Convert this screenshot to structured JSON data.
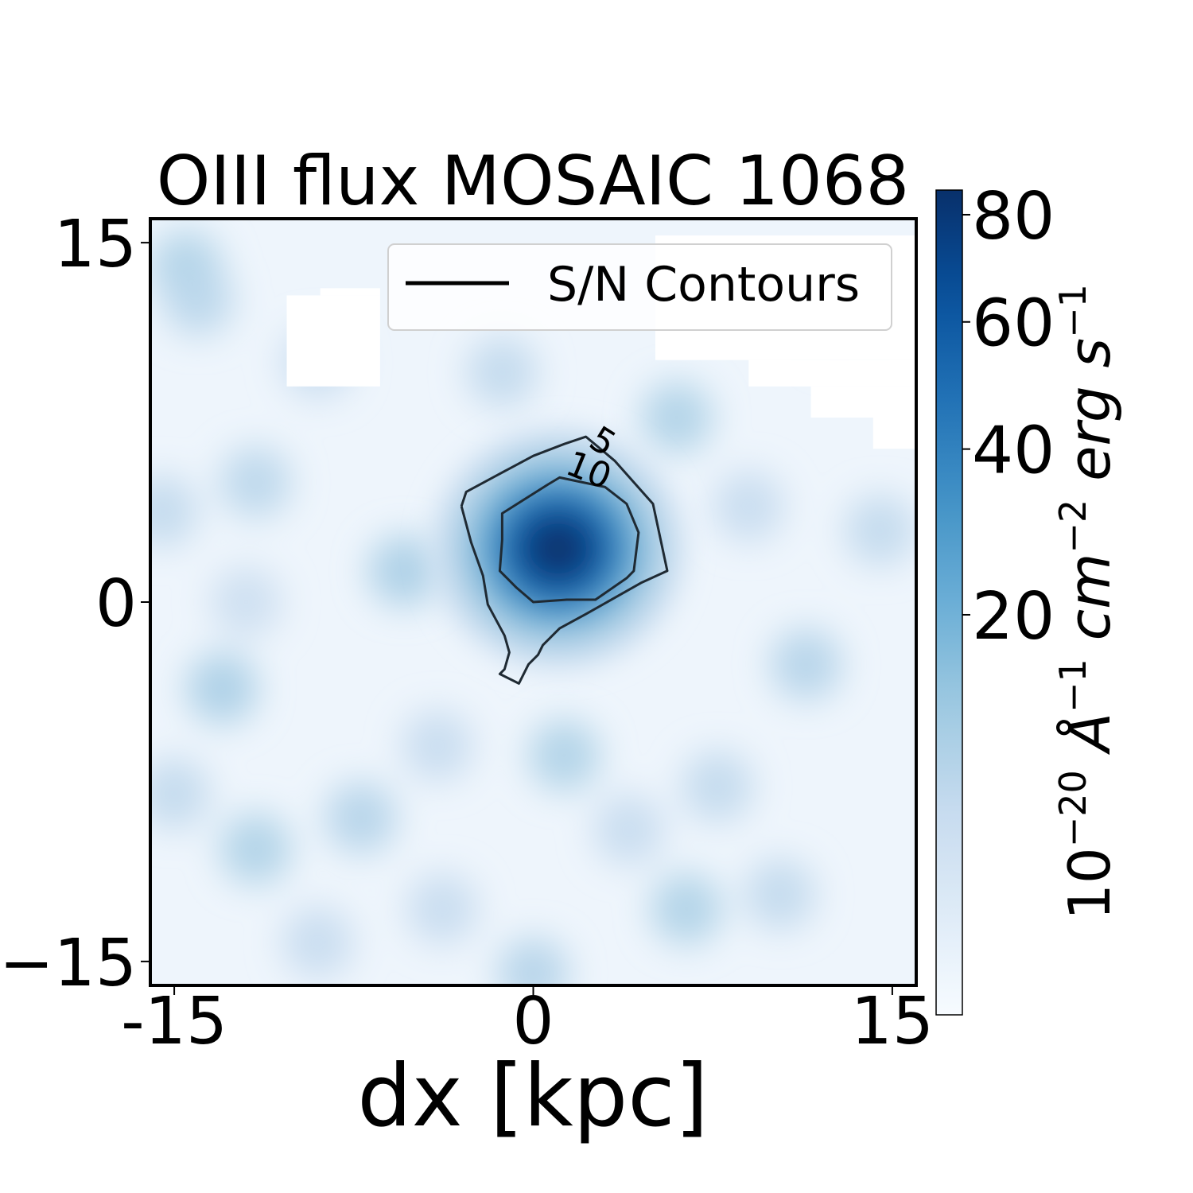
{
  "chart_data": {
    "type": "heatmap",
    "title": "OIII flux MOSAIC 1068",
    "xlabel": "dx [kpc]",
    "ylabel": "",
    "x_ticks": [
      "-15",
      "0",
      "15"
    ],
    "x_tick_values": [
      -15,
      0,
      15
    ],
    "y_ticks": [
      "15",
      "0",
      "−15"
    ],
    "y_tick_values": [
      15,
      0,
      -15
    ],
    "xlim": [
      -16,
      16
    ],
    "ylim": [
      -16,
      16
    ],
    "colormap": "Blues",
    "colorbar": {
      "label_parts": [
        "10",
        "−20",
        " Å",
        "−1",
        " cm",
        "−2",
        " erg s",
        "−1"
      ],
      "ticks": [
        "20",
        "40",
        "60",
        "80"
      ],
      "tick_values": [
        20,
        40,
        60,
        80
      ],
      "range": [
        0,
        85
      ],
      "scale": "sqrt"
    },
    "legend": {
      "label": "S/N Contours",
      "placement": "upper right"
    },
    "peak": {
      "x": 1.3,
      "y": 2.4,
      "value": 85
    },
    "contours": [
      {
        "level": 5,
        "label": "5",
        "points": [
          [
            -3,
            4
          ],
          [
            -2.8,
            4.6
          ],
          [
            -1.5,
            5.3
          ],
          [
            0,
            6.1
          ],
          [
            1.3,
            6.6
          ],
          [
            2.2,
            6.9
          ],
          [
            3.4,
            5.9
          ],
          [
            5,
            4.1
          ],
          [
            5.6,
            1.3
          ],
          [
            4.5,
            0.8
          ],
          [
            2.2,
            -0.5
          ],
          [
            1.1,
            -1.1
          ],
          [
            0.4,
            -1.8
          ],
          [
            0.2,
            -2.2
          ],
          [
            -0.2,
            -2.6
          ],
          [
            -0.6,
            -3.4
          ],
          [
            -1.4,
            -3
          ],
          [
            -1.2,
            -2.8
          ],
          [
            -1,
            -2.1
          ],
          [
            -1.2,
            -1.4
          ],
          [
            -1.9,
            -0.1
          ],
          [
            -2.1,
            1.1
          ],
          [
            -2.6,
            2.5
          ],
          [
            -3,
            4
          ]
        ]
      },
      {
        "level": 10,
        "label": "10",
        "points": [
          [
            0.6,
            4.9
          ],
          [
            1.1,
            5.2
          ],
          [
            3,
            4.8
          ],
          [
            3.9,
            4.1
          ],
          [
            4.4,
            2.9
          ],
          [
            4.2,
            1.3
          ],
          [
            3.9,
            1
          ],
          [
            2.6,
            0.1
          ],
          [
            1.4,
            0.1
          ],
          [
            0,
            0
          ],
          [
            -0.7,
            0.6
          ],
          [
            -1.4,
            1.3
          ],
          [
            -1.3,
            2.6
          ],
          [
            -1.3,
            3.1
          ],
          [
            -1.3,
            3.7
          ],
          [
            0.6,
            4.9
          ]
        ]
      }
    ],
    "blank_regions": [
      {
        "x0": -10.3,
        "x1": -6.4,
        "y0": 9,
        "y1": 12.8
      },
      {
        "x0": -8.9,
        "x1": -6.4,
        "y0": 12.8,
        "y1": 13.1
      },
      {
        "x0": 5.1,
        "x1": 16,
        "y0": 10.1,
        "y1": 15.3
      },
      {
        "x0": 9,
        "x1": 16,
        "y0": 9,
        "y1": 10.1
      },
      {
        "x0": 11.6,
        "x1": 16,
        "y0": 7.7,
        "y1": 9
      },
      {
        "x0": 14.2,
        "x1": 16,
        "y0": 6.4,
        "y1": 7.7
      }
    ],
    "background_blobs": [
      {
        "x": -14.5,
        "y": 14,
        "value": 9
      },
      {
        "x": -14,
        "y": 12.6,
        "value": 7
      },
      {
        "x": -11.6,
        "y": 5,
        "value": 7
      },
      {
        "x": -5.4,
        "y": 1.3,
        "value": 10
      },
      {
        "x": 6,
        "y": 7.7,
        "value": 9
      },
      {
        "x": -1.3,
        "y": 9.6,
        "value": 6
      },
      {
        "x": -13,
        "y": -3.6,
        "value": 10
      },
      {
        "x": 11.4,
        "y": -2.6,
        "value": 8
      },
      {
        "x": -7.2,
        "y": -9,
        "value": 8
      },
      {
        "x": 1.3,
        "y": -6.4,
        "value": 9
      },
      {
        "x": -11.6,
        "y": -10.3,
        "value": 9
      },
      {
        "x": 6.4,
        "y": -12.8,
        "value": 9
      },
      {
        "x": 0,
        "y": -15.5,
        "value": 8
      },
      {
        "x": 14.5,
        "y": 3,
        "value": 6
      },
      {
        "x": -15.5,
        "y": 3.8,
        "value": 6
      },
      {
        "x": 7.7,
        "y": -7.7,
        "value": 6
      },
      {
        "x": -9,
        "y": -14.2,
        "value": 5
      },
      {
        "x": 10.3,
        "y": -12.2,
        "value": 6
      },
      {
        "x": 12.8,
        "y": 11.6,
        "value": 5
      },
      {
        "x": -3.8,
        "y": -12.8,
        "value": 5
      },
      {
        "x": -15,
        "y": -8,
        "value": 6
      },
      {
        "x": -9,
        "y": 10,
        "value": 5
      },
      {
        "x": 9,
        "y": 4,
        "value": 5
      },
      {
        "x": 4,
        "y": -9.5,
        "value": 5
      },
      {
        "x": -4,
        "y": -6,
        "value": 5
      },
      {
        "x": -12,
        "y": 0,
        "value": 4
      }
    ]
  }
}
